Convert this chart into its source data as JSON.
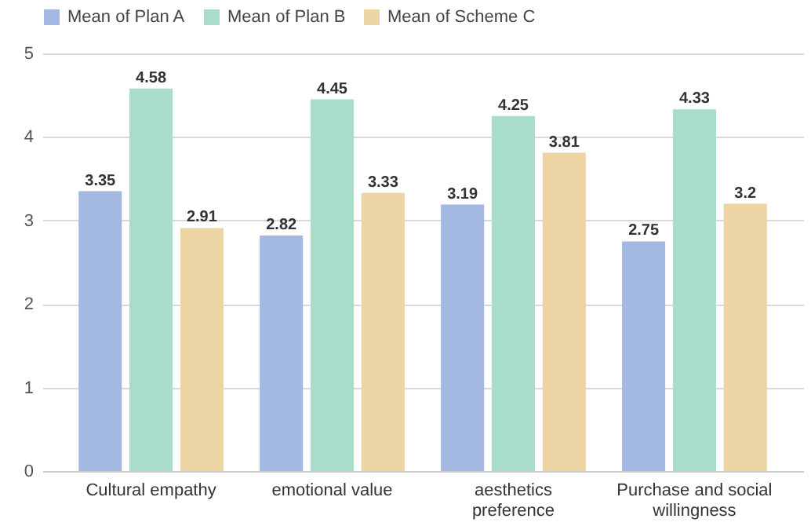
{
  "chart_data": {
    "type": "bar",
    "categories": [
      "Cultural empathy",
      "emotional value",
      "aesthetics preference",
      "Purchase and social willingness"
    ],
    "series": [
      {
        "name": "Mean of Plan A",
        "color": "#a4b9e1",
        "values": [
          3.35,
          2.82,
          3.19,
          2.75
        ]
      },
      {
        "name": "Mean of Plan B",
        "color": "#a9dcc9",
        "values": [
          4.58,
          4.45,
          4.25,
          4.33
        ]
      },
      {
        "name": "Mean of Scheme C",
        "color": "#ecd4a4",
        "values": [
          2.91,
          3.33,
          3.81,
          3.2
        ]
      }
    ],
    "ylim": [
      0,
      5
    ],
    "yticks": [
      0,
      1,
      2,
      3,
      4,
      5
    ],
    "grid": "y",
    "legend": "top left",
    "data_labels": true
  }
}
